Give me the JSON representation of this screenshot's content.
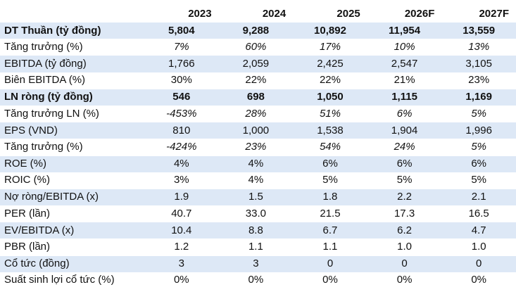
{
  "table": {
    "headers": [
      "",
      "2023",
      "2024",
      "2025",
      "2026F",
      "2027F"
    ],
    "rows": [
      {
        "label": "DT Thuần (tỷ đồng)",
        "values": [
          "5,804",
          "9,288",
          "10,892",
          "11,954",
          "13,559"
        ],
        "bold": true,
        "italic": false
      },
      {
        "label": "Tăng trưởng (%)",
        "values": [
          "7%",
          "60%",
          "17%",
          "10%",
          "13%"
        ],
        "bold": false,
        "italic": true
      },
      {
        "label": "EBITDA (tỷ đồng)",
        "values": [
          "1,766",
          "2,059",
          "2,425",
          "2,547",
          "3,105"
        ],
        "bold": false,
        "italic": false
      },
      {
        "label": "Biên EBITDA (%)",
        "values": [
          "30%",
          "22%",
          "22%",
          "21%",
          "23%"
        ],
        "bold": false,
        "italic": false
      },
      {
        "label": "LN ròng (tỷ đồng)",
        "values": [
          "546",
          "698",
          "1,050",
          "1,115",
          "1,169"
        ],
        "bold": true,
        "italic": false
      },
      {
        "label": "Tăng trưởng LN (%)",
        "values": [
          "-453%",
          "28%",
          "51%",
          "6%",
          "5%"
        ],
        "bold": false,
        "italic": true
      },
      {
        "label": "EPS (VND)",
        "values": [
          "810",
          "1,000",
          "1,538",
          "1,904",
          "1,996"
        ],
        "bold": false,
        "italic": false
      },
      {
        "label": "Tăng trưởng (%)",
        "values": [
          "-424%",
          "23%",
          "54%",
          "24%",
          "5%"
        ],
        "bold": false,
        "italic": true
      },
      {
        "label": "ROE (%)",
        "values": [
          "4%",
          "4%",
          "6%",
          "6%",
          "6%"
        ],
        "bold": false,
        "italic": false
      },
      {
        "label": "ROIC (%)",
        "values": [
          "3%",
          "4%",
          "5%",
          "5%",
          "5%"
        ],
        "bold": false,
        "italic": false
      },
      {
        "label": "Nợ ròng/EBITDA (x)",
        "values": [
          "1.9",
          "1.5",
          "1.8",
          "2.2",
          "2.1"
        ],
        "bold": false,
        "italic": false
      },
      {
        "label": "PER (lần)",
        "values": [
          "40.7",
          "33.0",
          "21.5",
          "17.3",
          "16.5"
        ],
        "bold": false,
        "italic": false
      },
      {
        "label": "EV/EBITDA (x)",
        "values": [
          "10.4",
          "8.8",
          "6.7",
          "6.2",
          "4.7"
        ],
        "bold": false,
        "italic": false
      },
      {
        "label": "PBR (lần)",
        "values": [
          "1.2",
          "1.1",
          "1.1",
          "1.0",
          "1.0"
        ],
        "bold": false,
        "italic": false
      },
      {
        "label": "Cổ tức (đồng)",
        "values": [
          "3",
          "3",
          "0",
          "0",
          "0"
        ],
        "bold": false,
        "italic": false
      },
      {
        "label": "Suất sinh lợi cổ tức (%)",
        "values": [
          "0%",
          "0%",
          "0%",
          "0%",
          "0%"
        ],
        "bold": false,
        "italic": false
      }
    ]
  }
}
